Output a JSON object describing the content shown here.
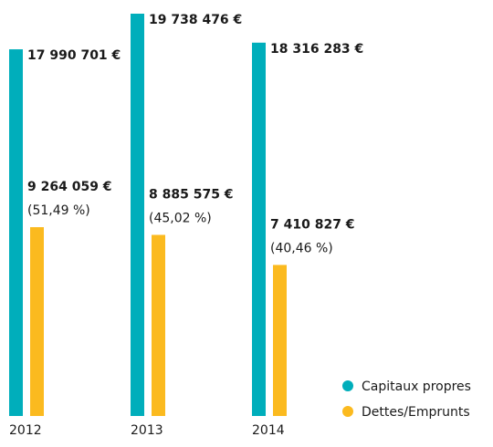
{
  "chart_data": {
    "type": "bar",
    "categories": [
      "2012",
      "2013",
      "2014"
    ],
    "series": [
      {
        "name": "Capitaux propres",
        "color": "#00aebb",
        "values": [
          17990701,
          19738476,
          18316283
        ],
        "value_labels": [
          "17 990 701 €",
          "19 738 476 €",
          "18 316 283 €"
        ]
      },
      {
        "name": "Dettes/Emprunts",
        "color": "#fbba1f",
        "values": [
          9264059,
          8885575,
          7410827
        ],
        "value_labels": [
          "9 264 059 €",
          "8 885 575 €",
          "7 410 827 €"
        ],
        "share_labels": [
          "(51,49 %)",
          "(45,02 %)",
          "(40,46 %)"
        ]
      }
    ],
    "legend": "bottom-right"
  }
}
